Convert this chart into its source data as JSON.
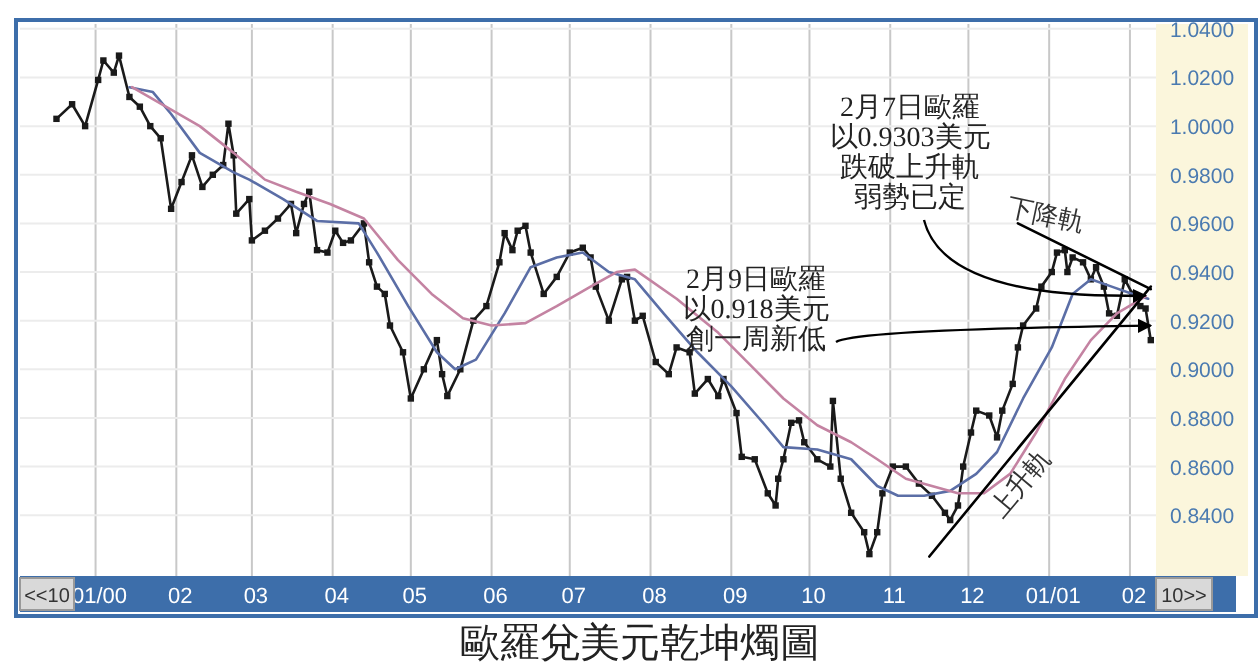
{
  "chart_data": {
    "type": "line",
    "title": "歐羅兌美元乾坤燭圖",
    "xlim": [
      "1999-12-03",
      "2001-02-11"
    ],
    "ylim": [
      0.815,
      1.042
    ],
    "xticks": [
      {
        "value": "2000-01-01",
        "label": "01/00"
      },
      {
        "value": "2000-02-01",
        "label": "02"
      },
      {
        "value": "2000-03-01",
        "label": "03"
      },
      {
        "value": "2000-04-01",
        "label": "04"
      },
      {
        "value": "2000-05-01",
        "label": "05"
      },
      {
        "value": "2000-06-01",
        "label": "06"
      },
      {
        "value": "2000-07-01",
        "label": "07"
      },
      {
        "value": "2000-08-01",
        "label": "08"
      },
      {
        "value": "2000-09-01",
        "label": "09"
      },
      {
        "value": "2000-10-01",
        "label": "10"
      },
      {
        "value": "2000-11-01",
        "label": "11"
      },
      {
        "value": "2000-12-01",
        "label": "12"
      },
      {
        "value": "2001-01-01",
        "label": "01/01"
      },
      {
        "value": "2001-02-01",
        "label": "02"
      }
    ],
    "yticks": [
      {
        "value": 0.84,
        "label": "0.8400"
      },
      {
        "value": 0.86,
        "label": "0.8600"
      },
      {
        "value": 0.88,
        "label": "0.8800"
      },
      {
        "value": 0.9,
        "label": "0.9000"
      },
      {
        "value": 0.92,
        "label": "0.9200"
      },
      {
        "value": 0.94,
        "label": "0.9400"
      },
      {
        "value": 0.96,
        "label": "0.9600"
      },
      {
        "value": 0.98,
        "label": "0.9800"
      },
      {
        "value": 1.0,
        "label": "1.0000"
      },
      {
        "value": 1.02,
        "label": "1.0200"
      },
      {
        "value": 1.04,
        "label": "1.0400"
      }
    ],
    "grid": true,
    "series": [
      {
        "color": "#1a1a1a",
        "marker": "square",
        "x": [
          "1999-12-17",
          "1999-12-23",
          "1999-12-28",
          "2000-01-02",
          "2000-01-04",
          "2000-01-08",
          "2000-01-10",
          "2000-01-14",
          "2000-01-18",
          "2000-01-22",
          "2000-01-26",
          "2000-01-30",
          "2000-02-03",
          "2000-02-07",
          "2000-02-11",
          "2000-02-15",
          "2000-02-19",
          "2000-02-21",
          "2000-02-23",
          "2000-02-24",
          "2000-02-29",
          "2000-03-01",
          "2000-03-06",
          "2000-03-11",
          "2000-03-16",
          "2000-03-18",
          "2000-03-21",
          "2000-03-23",
          "2000-03-26",
          "2000-03-30",
          "2000-04-02",
          "2000-04-05",
          "2000-04-08",
          "2000-04-13",
          "2000-04-15",
          "2000-04-18",
          "2000-04-21",
          "2000-04-23",
          "2000-04-28",
          "2000-05-01",
          "2000-05-06",
          "2000-05-11",
          "2000-05-13",
          "2000-05-15",
          "2000-05-20",
          "2000-05-25",
          "2000-05-30",
          "2000-06-04",
          "2000-06-06",
          "2000-06-09",
          "2000-06-11",
          "2000-06-14",
          "2000-06-16",
          "2000-06-21",
          "2000-06-26",
          "2000-07-01",
          "2000-07-06",
          "2000-07-09",
          "2000-07-11",
          "2000-07-16",
          "2000-07-21",
          "2000-07-23",
          "2000-07-26",
          "2000-07-29",
          "2000-08-03",
          "2000-08-08",
          "2000-08-11",
          "2000-08-16",
          "2000-08-18",
          "2000-08-23",
          "2000-08-27",
          "2000-08-29",
          "2000-09-03",
          "2000-09-05",
          "2000-09-10",
          "2000-09-15",
          "2000-09-18",
          "2000-09-19",
          "2000-09-21",
          "2000-09-24",
          "2000-09-27",
          "2000-09-29",
          "2000-10-04",
          "2000-10-09",
          "2000-10-10",
          "2000-10-13",
          "2000-10-17",
          "2000-10-22",
          "2000-10-24",
          "2000-10-27",
          "2000-10-29",
          "2000-11-02",
          "2000-11-07",
          "2000-11-12",
          "2000-11-17",
          "2000-11-22",
          "2000-11-24",
          "2000-11-27",
          "2000-11-29",
          "2000-12-02",
          "2000-12-04",
          "2000-12-09",
          "2000-12-12",
          "2000-12-14",
          "2000-12-18",
          "2000-12-20",
          "2000-12-22",
          "2000-12-27",
          "2000-12-29",
          "2001-01-02",
          "2001-01-04",
          "2001-01-07",
          "2001-01-08",
          "2001-01-10",
          "2001-01-14",
          "2001-01-17",
          "2001-01-19",
          "2001-01-22",
          "2001-01-24",
          "2001-01-27",
          "2001-01-30",
          "2001-02-02",
          "2001-02-05",
          "2001-02-07",
          "2001-02-09"
        ],
        "values": [
          1.003,
          1.009,
          1.0,
          1.019,
          1.027,
          1.022,
          1.029,
          1.012,
          1.008,
          1.0,
          0.995,
          0.966,
          0.977,
          0.988,
          0.975,
          0.98,
          0.984,
          1.001,
          0.988,
          0.964,
          0.97,
          0.953,
          0.957,
          0.962,
          0.968,
          0.956,
          0.968,
          0.973,
          0.949,
          0.948,
          0.957,
          0.952,
          0.953,
          0.96,
          0.944,
          0.934,
          0.931,
          0.918,
          0.907,
          0.888,
          0.9,
          0.912,
          0.898,
          0.889,
          0.9,
          0.92,
          0.926,
          0.944,
          0.956,
          0.949,
          0.957,
          0.959,
          0.948,
          0.931,
          0.938,
          0.948,
          0.95,
          0.946,
          0.934,
          0.92,
          0.937,
          0.938,
          0.92,
          0.922,
          0.903,
          0.898,
          0.909,
          0.907,
          0.89,
          0.896,
          0.889,
          0.896,
          0.882,
          0.864,
          0.863,
          0.849,
          0.844,
          0.855,
          0.863,
          0.878,
          0.879,
          0.87,
          0.863,
          0.86,
          0.887,
          0.855,
          0.841,
          0.833,
          0.824,
          0.833,
          0.849,
          0.86,
          0.86,
          0.853,
          0.848,
          0.841,
          0.838,
          0.844,
          0.86,
          0.874,
          0.883,
          0.881,
          0.872,
          0.883,
          0.894,
          0.909,
          0.918,
          0.925,
          0.934,
          0.94,
          0.948,
          0.949,
          0.94,
          0.946,
          0.944,
          0.937,
          0.942,
          0.934,
          0.923,
          0.922,
          0.937,
          0.931,
          0.926,
          0.925,
          0.912
        ]
      },
      {
        "color": "#5b6ea6",
        "marker": "none",
        "x": [
          "2000-01-14",
          "2000-01-23",
          "2000-01-30",
          "2000-02-10",
          "2000-02-23",
          "2000-02-29",
          "2000-03-13",
          "2000-03-26",
          "2000-04-11",
          "2000-04-18",
          "2000-04-30",
          "2000-05-11",
          "2000-05-18",
          "2000-05-26",
          "2000-06-06",
          "2000-06-16",
          "2000-06-26",
          "2000-07-06",
          "2000-07-16",
          "2000-07-26",
          "2000-08-06",
          "2000-08-19",
          "2000-09-01",
          "2000-09-14",
          "2000-09-21",
          "2000-10-04",
          "2000-10-17",
          "2000-10-27",
          "2000-11-04",
          "2000-11-14",
          "2000-11-24",
          "2000-12-04",
          "2000-12-12",
          "2000-12-22",
          "2001-01-02",
          "2001-01-10",
          "2001-01-17",
          "2001-01-25",
          "2001-02-02",
          "2001-02-08"
        ],
        "values": [
          1.016,
          1.014,
          1.005,
          0.989,
          0.981,
          0.978,
          0.97,
          0.961,
          0.96,
          0.948,
          0.926,
          0.907,
          0.9,
          0.904,
          0.923,
          0.942,
          0.946,
          0.948,
          0.94,
          0.937,
          0.923,
          0.907,
          0.893,
          0.877,
          0.868,
          0.867,
          0.863,
          0.852,
          0.848,
          0.848,
          0.85,
          0.857,
          0.866,
          0.888,
          0.909,
          0.931,
          0.937,
          0.934,
          0.931,
          0.929
        ]
      },
      {
        "color": "#c483a2",
        "marker": "none",
        "x": [
          "2000-01-15",
          "2000-01-28",
          "2000-02-10",
          "2000-02-23",
          "2000-03-06",
          "2000-03-18",
          "2000-03-31",
          "2000-04-13",
          "2000-04-26",
          "2000-05-09",
          "2000-05-21",
          "2000-06-01",
          "2000-06-14",
          "2000-06-26",
          "2000-07-09",
          "2000-07-19",
          "2000-07-26",
          "2000-08-11",
          "2000-08-27",
          "2000-09-09",
          "2000-09-21",
          "2000-10-04",
          "2000-10-17",
          "2000-10-27",
          "2000-11-07",
          "2000-11-17",
          "2000-11-27",
          "2000-12-07",
          "2000-12-17",
          "2000-12-27",
          "2001-01-07",
          "2001-01-17",
          "2001-01-27",
          "2001-02-07"
        ],
        "values": [
          1.016,
          1.008,
          1.0,
          0.989,
          0.978,
          0.973,
          0.968,
          0.962,
          0.945,
          0.931,
          0.921,
          0.918,
          0.919,
          0.926,
          0.934,
          0.94,
          0.941,
          0.929,
          0.915,
          0.901,
          0.888,
          0.877,
          0.87,
          0.863,
          0.855,
          0.852,
          0.849,
          0.849,
          0.857,
          0.874,
          0.896,
          0.912,
          0.923,
          0.93
        ]
      },
      {
        "name": "上升軌",
        "color": "#000000",
        "marker": "none",
        "x": [
          "2000-11-16",
          "2001-02-09"
        ],
        "values": [
          0.823,
          0.934
        ]
      },
      {
        "name": "下降軌",
        "color": "#000000",
        "marker": "none",
        "x": [
          "2000-12-20",
          "2001-02-09"
        ],
        "values": [
          0.96,
          0.933
        ]
      }
    ],
    "annotations": [
      {
        "text": "2月7日歐羅以0.9303美元跌破上升軌弱勢已定",
        "x": "2001-02-07",
        "y": 0.9303
      },
      {
        "text": "2月9日歐羅以0.918美元創一周新低",
        "x": "2001-02-09",
        "y": 0.918
      },
      "<<10",
      "10>>"
    ]
  }
}
